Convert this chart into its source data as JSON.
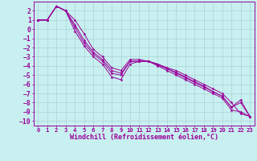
{
  "background_color": "#c8f0f0",
  "line_color": "#990099",
  "grid_color": "#b0d8d8",
  "xlabel": "Windchill (Refroidissement éolien,°C)",
  "xlim": [
    -0.5,
    23.5
  ],
  "ylim": [
    -10.5,
    3.0
  ],
  "xticks": [
    0,
    1,
    2,
    3,
    4,
    5,
    6,
    7,
    8,
    9,
    10,
    11,
    12,
    13,
    14,
    15,
    16,
    17,
    18,
    19,
    20,
    21,
    22,
    23
  ],
  "yticks": [
    2,
    1,
    0,
    -1,
    -2,
    -3,
    -4,
    -5,
    -6,
    -7,
    -8,
    -9,
    -10
  ],
  "lines": [
    [
      1.0,
      1.0,
      2.5,
      2.0,
      1.0,
      -0.5,
      -2.2,
      -3.0,
      -4.2,
      -4.5,
      -3.3,
      -3.3,
      -3.5,
      -3.8,
      -4.2,
      -4.5,
      -5.0,
      -5.5,
      -6.0,
      -6.5,
      -7.0,
      -8.0,
      -9.2,
      -9.5
    ],
    [
      1.0,
      1.0,
      2.5,
      2.0,
      0.5,
      -1.2,
      -2.5,
      -3.3,
      -4.5,
      -4.8,
      -3.5,
      -3.5,
      -3.5,
      -3.8,
      -4.3,
      -4.7,
      -5.2,
      -5.7,
      -6.2,
      -6.8,
      -7.3,
      -8.5,
      -8.0,
      -9.5
    ],
    [
      1.0,
      1.0,
      2.5,
      2.0,
      -0.2,
      -1.8,
      -3.0,
      -3.8,
      -5.2,
      -5.5,
      -3.8,
      -3.5,
      -3.5,
      -4.0,
      -4.5,
      -5.0,
      -5.5,
      -6.0,
      -6.5,
      -7.0,
      -7.5,
      -8.8,
      -9.0,
      -9.5
    ],
    [
      1.0,
      1.0,
      2.5,
      2.0,
      0.2,
      -1.5,
      -2.7,
      -3.5,
      -4.8,
      -5.0,
      -3.5,
      -3.5,
      -3.5,
      -3.9,
      -4.3,
      -4.8,
      -5.3,
      -5.8,
      -6.3,
      -6.8,
      -7.3,
      -8.5,
      -7.7,
      -9.5
    ]
  ]
}
